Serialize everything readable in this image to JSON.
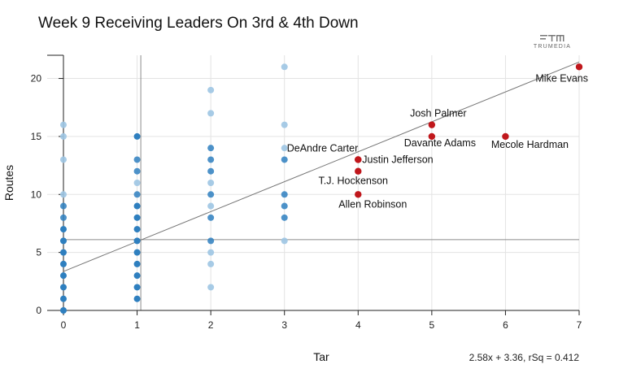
{
  "title": "Week 9 Receiving Leaders On 3rd & 4th Down",
  "brand": {
    "name": "TRUMEDIA",
    "icon": "trumedia-logo-icon"
  },
  "colors": {
    "highlight": "#c0171c",
    "point_dark": "#2e7fbf",
    "point_light": "#9dc5e3",
    "grid": "#e3e3e3",
    "avg_line": "#8c8c8c",
    "trend": "#777777"
  },
  "chart_data": {
    "type": "scatter",
    "title": "Week 9 Receiving Leaders On 3rd & 4th Down",
    "xlabel": "Tar",
    "ylabel": "Routes",
    "xlim": [
      0,
      7
    ],
    "ylim": [
      0,
      22
    ],
    "x_ticks": [
      0,
      1,
      2,
      3,
      4,
      5,
      6,
      7
    ],
    "y_ticks": [
      0,
      5,
      10,
      15,
      20
    ],
    "grid": true,
    "reference_lines": {
      "x_mean": 1.05,
      "y_mean": 6.1
    },
    "trendline": {
      "slope": 2.58,
      "intercept": 3.36,
      "label": "2.58x + 3.36, rSq = 0.412"
    },
    "highlighted": [
      {
        "name": "Mike Evans",
        "x": 7,
        "y": 21
      },
      {
        "name": "Josh Palmer",
        "x": 5,
        "y": 16
      },
      {
        "name": "Davante Adams",
        "x": 5,
        "y": 15
      },
      {
        "name": "Mecole Hardman",
        "x": 6,
        "y": 15
      },
      {
        "name": "DeAndre Carter",
        "x": 4,
        "y": 13
      },
      {
        "name": "Justin Jefferson",
        "x": 4,
        "y": 13
      },
      {
        "name": "T.J. Hockenson",
        "x": 4,
        "y": 12
      },
      {
        "name": "Allen Robinson",
        "x": 4,
        "y": 10
      }
    ],
    "points": [
      {
        "x": 0,
        "y": 0,
        "n": 3
      },
      {
        "x": 0,
        "y": 1,
        "n": 3
      },
      {
        "x": 0,
        "y": 2,
        "n": 3
      },
      {
        "x": 0,
        "y": 3,
        "n": 3
      },
      {
        "x": 0,
        "y": 4,
        "n": 3
      },
      {
        "x": 0,
        "y": 5,
        "n": 3
      },
      {
        "x": 0,
        "y": 6,
        "n": 3
      },
      {
        "x": 0,
        "y": 7,
        "n": 3
      },
      {
        "x": 0,
        "y": 8,
        "n": 2
      },
      {
        "x": 0,
        "y": 9,
        "n": 2
      },
      {
        "x": 0,
        "y": 10,
        "n": 1
      },
      {
        "x": 0,
        "y": 13,
        "n": 1
      },
      {
        "x": 0,
        "y": 15,
        "n": 1
      },
      {
        "x": 0,
        "y": 16,
        "n": 1
      },
      {
        "x": 1,
        "y": 1,
        "n": 3
      },
      {
        "x": 1,
        "y": 2,
        "n": 3
      },
      {
        "x": 1,
        "y": 3,
        "n": 3
      },
      {
        "x": 1,
        "y": 4,
        "n": 3
      },
      {
        "x": 1,
        "y": 5,
        "n": 3
      },
      {
        "x": 1,
        "y": 6,
        "n": 3
      },
      {
        "x": 1,
        "y": 7,
        "n": 3
      },
      {
        "x": 1,
        "y": 8,
        "n": 3
      },
      {
        "x": 1,
        "y": 9,
        "n": 3
      },
      {
        "x": 1,
        "y": 10,
        "n": 2
      },
      {
        "x": 1,
        "y": 11,
        "n": 1
      },
      {
        "x": 1,
        "y": 12,
        "n": 2
      },
      {
        "x": 1,
        "y": 13,
        "n": 2
      },
      {
        "x": 1,
        "y": 15,
        "n": 3
      },
      {
        "x": 2,
        "y": 2,
        "n": 1
      },
      {
        "x": 2,
        "y": 4,
        "n": 1
      },
      {
        "x": 2,
        "y": 5,
        "n": 1
      },
      {
        "x": 2,
        "y": 6,
        "n": 2
      },
      {
        "x": 2,
        "y": 8,
        "n": 2
      },
      {
        "x": 2,
        "y": 9,
        "n": 1
      },
      {
        "x": 2,
        "y": 10,
        "n": 2
      },
      {
        "x": 2,
        "y": 11,
        "n": 1
      },
      {
        "x": 2,
        "y": 12,
        "n": 2
      },
      {
        "x": 2,
        "y": 13,
        "n": 2
      },
      {
        "x": 2,
        "y": 14,
        "n": 2
      },
      {
        "x": 2,
        "y": 17,
        "n": 1
      },
      {
        "x": 2,
        "y": 19,
        "n": 1
      },
      {
        "x": 3,
        "y": 6,
        "n": 1
      },
      {
        "x": 3,
        "y": 8,
        "n": 2
      },
      {
        "x": 3,
        "y": 9,
        "n": 2
      },
      {
        "x": 3,
        "y": 10,
        "n": 2
      },
      {
        "x": 3,
        "y": 13,
        "n": 2
      },
      {
        "x": 3,
        "y": 14,
        "n": 1
      },
      {
        "x": 3,
        "y": 16,
        "n": 1
      },
      {
        "x": 3,
        "y": 21,
        "n": 1
      }
    ]
  }
}
